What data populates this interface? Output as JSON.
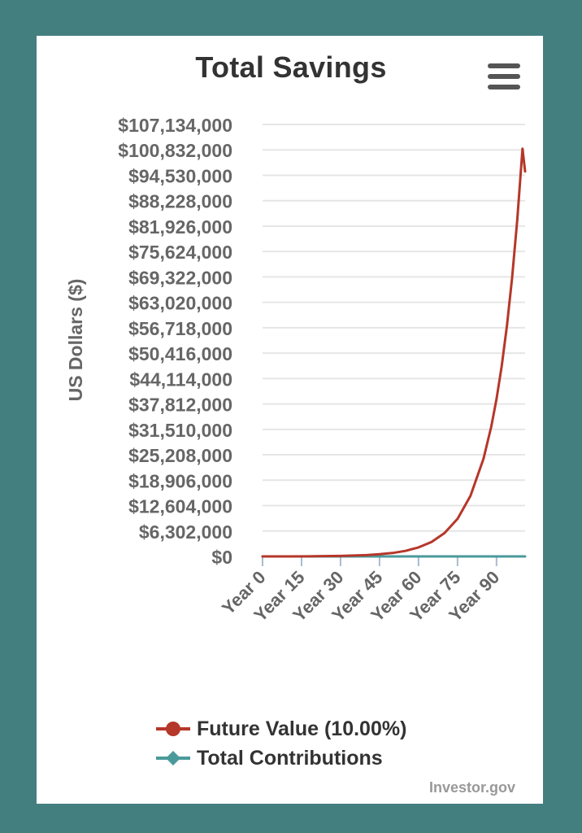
{
  "chart_data": {
    "type": "line",
    "title": "Total Savings",
    "ylabel": "US Dollars ($)",
    "xlabel": "",
    "x_ticks": [
      "Year 0",
      "Year 15",
      "Year 30",
      "Year 45",
      "Year 60",
      "Year 75",
      "Year 90"
    ],
    "y_ticks": [
      "$0",
      "$6,302,000",
      "$12,604,000",
      "$18,906,000",
      "$25,208,000",
      "$31,510,000",
      "$37,812,000",
      "$44,114,000",
      "$50,416,000",
      "$56,718,000",
      "$63,020,000",
      "$69,322,000",
      "$75,624,000",
      "$81,926,000",
      "$88,228,000",
      "$94,530,000",
      "$100,832,000",
      "$107,134,000"
    ],
    "xlim": [
      0,
      101
    ],
    "ylim": [
      0,
      107134000
    ],
    "grid": true,
    "legend_position": "bottom",
    "series": [
      {
        "name": "Future Value (10.00%)",
        "color": "#b5372a",
        "x": [
          0,
          10,
          20,
          30,
          40,
          45,
          50,
          55,
          60,
          65,
          70,
          75,
          80,
          85,
          88,
          90,
          92,
          94,
          96,
          98,
          100,
          101
        ],
        "y": [
          0,
          10000,
          40000,
          120000,
          320000,
          540000,
          850000,
          1380000,
          2230000,
          3600000,
          5790000,
          9330000,
          15030000,
          24210000,
          32220000,
          38990000,
          47180000,
          57090000,
          69080000,
          83580000,
          101130000,
          95500000
        ]
      },
      {
        "name": "Total Contributions",
        "color": "#4a9a9b",
        "x": [
          0,
          101
        ],
        "y": [
          0,
          0
        ]
      }
    ]
  },
  "credits": "Investor.gov",
  "menu_icon": "hamburger-menu-icon"
}
